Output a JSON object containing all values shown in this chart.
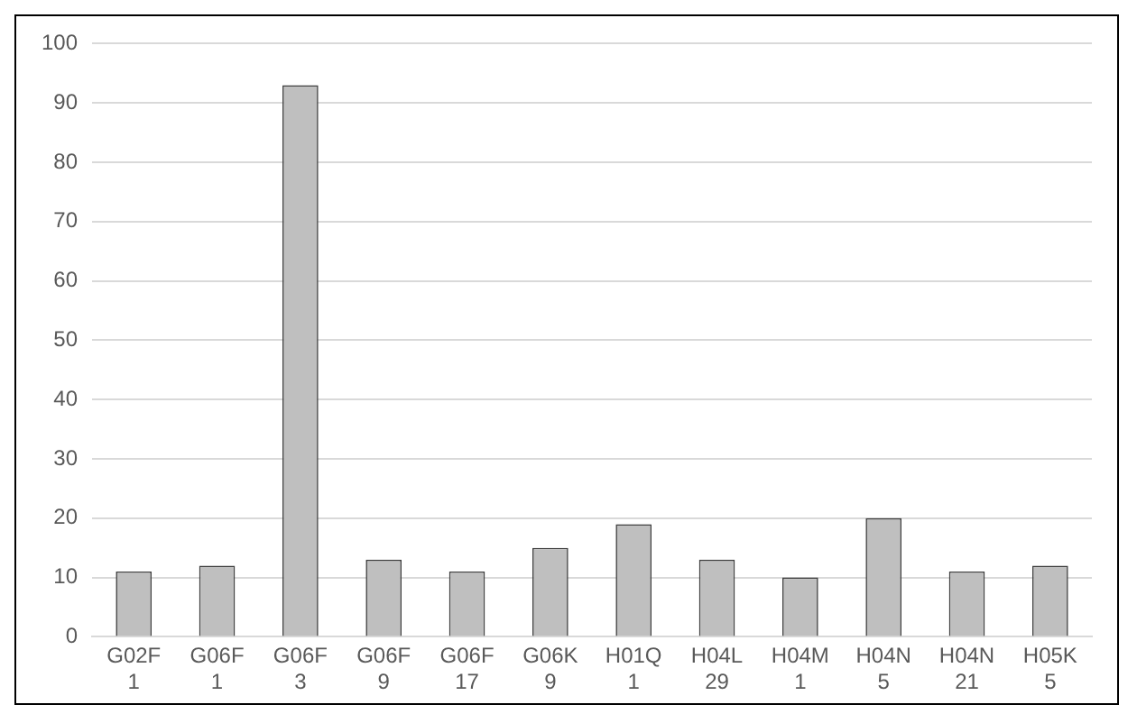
{
  "chart_data": {
    "type": "bar",
    "categories": [
      "G02F 1",
      "G06F 1",
      "G06F 3",
      "G06F 9",
      "G06F 17",
      "G06K 9",
      "H01Q 1",
      "H04L 29",
      "H04M 1",
      "H04N 5",
      "H04N 21",
      "H05K 5"
    ],
    "values": [
      11,
      12,
      93,
      13,
      11,
      15,
      19,
      13,
      10,
      20,
      11,
      12
    ],
    "color": "#bfbfbf",
    "ylim": [
      0,
      100
    ],
    "yticks": [
      0,
      10,
      20,
      30,
      40,
      50,
      60,
      70,
      80,
      90,
      100
    ],
    "grid": "y"
  }
}
